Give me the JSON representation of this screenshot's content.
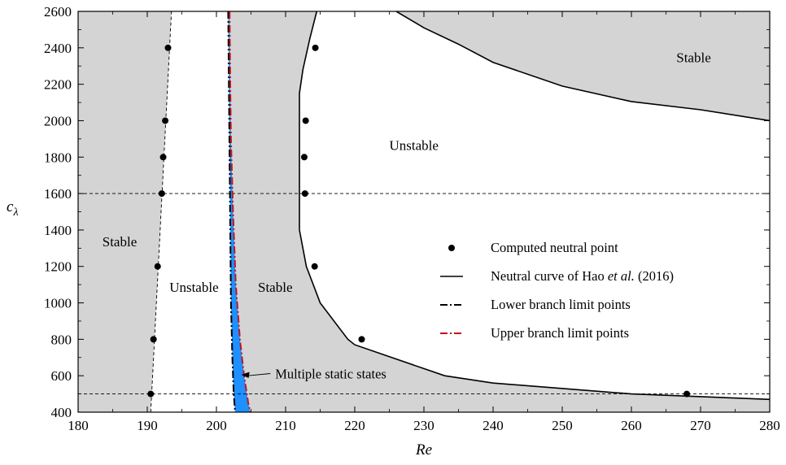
{
  "chart_data": {
    "type": "scatter",
    "xlabel": "Re",
    "ylabel_main": "c",
    "ylabel_sub": "λ",
    "xlim": [
      180,
      280
    ],
    "ylim": [
      400,
      2600
    ],
    "xticks": [
      180,
      190,
      200,
      210,
      220,
      230,
      240,
      250,
      260,
      270,
      280
    ],
    "yticks": [
      400,
      600,
      800,
      1000,
      1200,
      1400,
      1600,
      1800,
      2000,
      2200,
      2400,
      2600
    ],
    "region_labels": [
      {
        "text": "Stable",
        "x": 183.5,
        "y": 1310
      },
      {
        "text": "Unstable",
        "x": 193.2,
        "y": 1060
      },
      {
        "text": "Stable",
        "x": 206.0,
        "y": 1060
      },
      {
        "text": "Unstable",
        "x": 225.0,
        "y": 1840
      },
      {
        "text": "Stable",
        "x": 266.5,
        "y": 2320
      }
    ],
    "computed_points": [
      {
        "x": 190.5,
        "y": 500
      },
      {
        "x": 190.9,
        "y": 800
      },
      {
        "x": 191.5,
        "y": 1200
      },
      {
        "x": 192.1,
        "y": 1600
      },
      {
        "x": 192.3,
        "y": 1800
      },
      {
        "x": 192.6,
        "y": 2000
      },
      {
        "x": 193.0,
        "y": 2400
      },
      {
        "x": 212.8,
        "y": 1600
      },
      {
        "x": 212.7,
        "y": 1800
      },
      {
        "x": 212.9,
        "y": 2000
      },
      {
        "x": 214.2,
        "y": 1200
      },
      {
        "x": 214.3,
        "y": 2400
      },
      {
        "x": 221.0,
        "y": 800
      },
      {
        "x": 268.0,
        "y": 500
      }
    ],
    "neutral_curve_right": [
      {
        "x": 212,
        "y": 1400
      },
      {
        "x": 212,
        "y": 2150
      },
      {
        "x": 212.5,
        "y": 2280
      },
      {
        "x": 213.5,
        "y": 2450
      },
      {
        "x": 214.5,
        "y": 2600
      }
    ],
    "neutral_curve_lower": [
      {
        "x": 212,
        "y": 1400
      },
      {
        "x": 213,
        "y": 1200
      },
      {
        "x": 215,
        "y": 1000
      },
      {
        "x": 219,
        "y": 800
      },
      {
        "x": 220,
        "y": 770
      },
      {
        "x": 233,
        "y": 600
      },
      {
        "x": 240,
        "y": 560
      },
      {
        "x": 260,
        "y": 500
      },
      {
        "x": 280,
        "y": 470
      }
    ],
    "neutral_curve_upper": [
      {
        "x": 226,
        "y": 2600
      },
      {
        "x": 230,
        "y": 2510
      },
      {
        "x": 235,
        "y": 2420
      },
      {
        "x": 240,
        "y": 2320
      },
      {
        "x": 250,
        "y": 2190
      },
      {
        "x": 260,
        "y": 2105
      },
      {
        "x": 270,
        "y": 2060
      },
      {
        "x": 280,
        "y": 2000
      }
    ],
    "left_dashed_line": [
      {
        "x": 190.5,
        "y": 400
      },
      {
        "x": 193.5,
        "y": 2600
      }
    ],
    "lower_branch_limit": [
      {
        "x": 201.7,
        "y": 2600
      },
      {
        "x": 201.8,
        "y": 2200
      },
      {
        "x": 201.9,
        "y": 1800
      },
      {
        "x": 202.0,
        "y": 1400
      },
      {
        "x": 202.1,
        "y": 1000
      },
      {
        "x": 202.3,
        "y": 700
      },
      {
        "x": 202.5,
        "y": 500
      },
      {
        "x": 202.7,
        "y": 400
      }
    ],
    "upper_branch_limit": [
      {
        "x": 201.9,
        "y": 2600
      },
      {
        "x": 202.0,
        "y": 2200
      },
      {
        "x": 202.1,
        "y": 1900
      },
      {
        "x": 202.4,
        "y": 1500
      },
      {
        "x": 202.8,
        "y": 1100
      },
      {
        "x": 203.4,
        "y": 800
      },
      {
        "x": 204.0,
        "y": 600
      },
      {
        "x": 204.6,
        "y": 450
      },
      {
        "x": 204.9,
        "y": 400
      }
    ],
    "horizontal_dashed_lines": [
      500,
      1600
    ],
    "vertical_dashed_lines": [
      201.8
    ],
    "legend": [
      {
        "label": "Computed neutral point",
        "style": "dot"
      },
      {
        "label_pre": "Neutral curve of Hao ",
        "label_em": "et al.",
        "label_post": " (2016)",
        "style": "solid"
      },
      {
        "label": "Lower branch limit points",
        "style": "dashdot-black"
      },
      {
        "label": "Upper branch limit points",
        "style": "dashdot-red"
      }
    ],
    "annotation": {
      "text": "Multiple static states",
      "target_x": 203.6,
      "target_y": 605,
      "text_x": 208.5,
      "text_y": 585
    },
    "colors": {
      "stable_fill": "#d4d4d4",
      "multi_fill": "#1e90ff",
      "upper_branch": "#c0141e",
      "line": "#000000"
    }
  }
}
